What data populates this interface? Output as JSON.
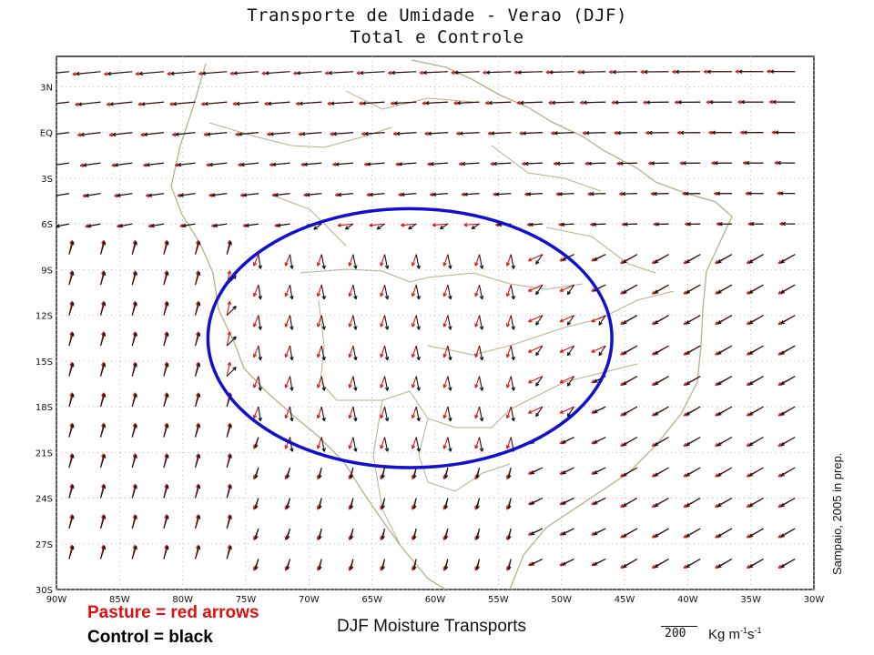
{
  "title_line1": "Transporte de Umidade - Verao (DJF)",
  "title_line2": "Total e Controle",
  "lat_labels": [
    "3N",
    "EQ",
    "3S",
    "6S",
    "9S",
    "12S",
    "15S",
    "18S",
    "21S",
    "24S",
    "27S",
    "30S"
  ],
  "lat_values": [
    3,
    0,
    -3,
    -6,
    -9,
    -12,
    -15,
    -18,
    -21,
    -24,
    -27,
    -30
  ],
  "lon_labels": [
    "90W",
    "85W",
    "80W",
    "75W",
    "70W",
    "65W",
    "60W",
    "55W",
    "50W",
    "45W",
    "40W",
    "35W",
    "30W"
  ],
  "lon_values": [
    -90,
    -85,
    -80,
    -75,
    -70,
    -65,
    -60,
    -55,
    -50,
    -45,
    -40,
    -35,
    -30
  ],
  "legend": {
    "pasture": "Pasture = red arrows",
    "control": "Control  = black"
  },
  "caption": "DJF Moisture Transports",
  "scale": {
    "value": "200",
    "unit": "Kg m",
    "unit_exp1": "-1",
    "unit_s": "s",
    "unit_exp2": "-1"
  },
  "credit": "Sampaio, 2005 in prep.",
  "colors": {
    "pasture_arrows": "#e01010",
    "control_arrows": "#111111",
    "coastline": "#b5b08a",
    "highlight_ellipse": "#1010d0"
  },
  "map_extent": {
    "lon_min": -90,
    "lon_max": -30,
    "lat_min": -30,
    "lat_max": 5
  },
  "highlight_region": {
    "center_lon": -62,
    "center_lat": -13.5,
    "radius_lon": 16,
    "radius_lat": 8.5
  }
}
